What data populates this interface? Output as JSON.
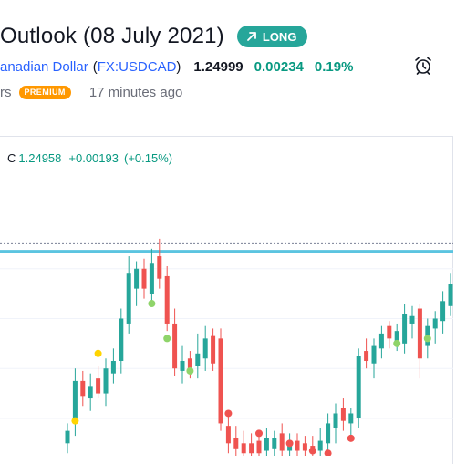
{
  "header": {
    "title": "Outlook (08 July 2021)",
    "badge_label": "LONG",
    "badge_icon": "arrow-up-right-icon"
  },
  "symbol": {
    "name": "anadian Dollar",
    "ticker": "FX:USDCAD",
    "price": "1.24999",
    "change": "0.00234",
    "change_pct": "0.19%",
    "alert_icon": "alarm-clock-icon"
  },
  "meta": {
    "author_suffix": "rs",
    "premium_label": "PREMIUM",
    "time_ago": "17 minutes ago"
  },
  "ohlc": {
    "close_label": "C",
    "close_value": "1.24958",
    "change_value": "+0.00193",
    "change_pct": "(+0.15%)"
  },
  "colors": {
    "up": "#26a69a",
    "down": "#ef5350",
    "accent_blue": "#2962ff",
    "level_line": "#5bc4e0",
    "premium": "#ff9800",
    "dot_green": "#8fd46a",
    "dot_red": "#ef5350",
    "dot_yellow": "#ffd400"
  },
  "chart_data": {
    "type": "candlestick",
    "title": "",
    "xlabel": "",
    "ylabel": "",
    "ylim": [
      1.2245,
      1.234
    ],
    "levels": [
      {
        "kind": "dashed",
        "value": 1.233
      },
      {
        "kind": "solid",
        "value": 1.2327
      }
    ],
    "candles": [
      {
        "dir": "up",
        "open": 1.225,
        "high": 1.2258,
        "low": 1.2246,
        "close": 1.2255
      },
      {
        "dir": "up",
        "open": 1.2258,
        "high": 1.228,
        "low": 1.2253,
        "close": 1.2275
      },
      {
        "dir": "down",
        "open": 1.2275,
        "high": 1.2279,
        "low": 1.2265,
        "close": 1.2269
      },
      {
        "dir": "up",
        "open": 1.2268,
        "high": 1.2278,
        "low": 1.2263,
        "close": 1.2273
      },
      {
        "dir": "down",
        "open": 1.2276,
        "high": 1.2281,
        "low": 1.2268,
        "close": 1.227
      },
      {
        "dir": "up",
        "open": 1.227,
        "high": 1.2284,
        "low": 1.2265,
        "close": 1.228
      },
      {
        "dir": "up",
        "open": 1.2278,
        "high": 1.2288,
        "low": 1.2274,
        "close": 1.2283
      },
      {
        "dir": "up",
        "open": 1.2283,
        "high": 1.2304,
        "low": 1.2278,
        "close": 1.23
      },
      {
        "dir": "up",
        "open": 1.2298,
        "high": 1.2325,
        "low": 1.2294,
        "close": 1.2318
      },
      {
        "dir": "up",
        "open": 1.2312,
        "high": 1.2323,
        "low": 1.2305,
        "close": 1.232
      },
      {
        "dir": "down",
        "open": 1.232,
        "high": 1.2324,
        "low": 1.2308,
        "close": 1.2312
      },
      {
        "dir": "up",
        "open": 1.231,
        "high": 1.2328,
        "low": 1.2305,
        "close": 1.2322
      },
      {
        "dir": "down",
        "open": 1.2325,
        "high": 1.2332,
        "low": 1.2312,
        "close": 1.2316
      },
      {
        "dir": "down",
        "open": 1.2317,
        "high": 1.2321,
        "low": 1.2295,
        "close": 1.2298
      },
      {
        "dir": "down",
        "open": 1.2298,
        "high": 1.2304,
        "low": 1.2277,
        "close": 1.228
      },
      {
        "dir": "up",
        "open": 1.2279,
        "high": 1.2289,
        "low": 1.2274,
        "close": 1.2283
      },
      {
        "dir": "down",
        "open": 1.2284,
        "high": 1.2287,
        "low": 1.2276,
        "close": 1.2278
      },
      {
        "dir": "up",
        "open": 1.2281,
        "high": 1.2294,
        "low": 1.2276,
        "close": 1.2286
      },
      {
        "dir": "up",
        "open": 1.2284,
        "high": 1.2297,
        "low": 1.2279,
        "close": 1.2292
      },
      {
        "dir": "down",
        "open": 1.2293,
        "high": 1.2296,
        "low": 1.2279,
        "close": 1.2282
      },
      {
        "dir": "down",
        "open": 1.2292,
        "high": 1.2296,
        "low": 1.2255,
        "close": 1.2258
      },
      {
        "dir": "down",
        "open": 1.2257,
        "high": 1.2262,
        "low": 1.2246,
        "close": 1.225
      },
      {
        "dir": "down",
        "open": 1.2252,
        "high": 1.2257,
        "low": 1.2245,
        "close": 1.2248
      },
      {
        "dir": "down",
        "open": 1.225,
        "high": 1.2255,
        "low": 1.2244,
        "close": 1.2246
      },
      {
        "dir": "down",
        "open": 1.225,
        "high": 1.2254,
        "low": 1.2244,
        "close": 1.2246
      },
      {
        "dir": "down",
        "open": 1.2251,
        "high": 1.2254,
        "low": 1.2244,
        "close": 1.2246
      },
      {
        "dir": "up",
        "open": 1.2247,
        "high": 1.2256,
        "low": 1.2244,
        "close": 1.2252
      },
      {
        "dir": "up",
        "open": 1.2248,
        "high": 1.2255,
        "low": 1.2244,
        "close": 1.2252
      },
      {
        "dir": "down",
        "open": 1.2254,
        "high": 1.2258,
        "low": 1.2244,
        "close": 1.2247
      },
      {
        "dir": "up",
        "open": 1.2247,
        "high": 1.2254,
        "low": 1.2244,
        "close": 1.2251
      },
      {
        "dir": "down",
        "open": 1.2251,
        "high": 1.2254,
        "low": 1.2244,
        "close": 1.2247
      },
      {
        "dir": "down",
        "open": 1.225,
        "high": 1.2253,
        "low": 1.2244,
        "close": 1.2247
      },
      {
        "dir": "down",
        "open": 1.2249,
        "high": 1.2253,
        "low": 1.2244,
        "close": 1.2246
      },
      {
        "dir": "up",
        "open": 1.2247,
        "high": 1.2256,
        "low": 1.2244,
        "close": 1.2251
      },
      {
        "dir": "up",
        "open": 1.225,
        "high": 1.2262,
        "low": 1.2246,
        "close": 1.2258
      },
      {
        "dir": "up",
        "open": 1.2256,
        "high": 1.2266,
        "low": 1.225,
        "close": 1.2262
      },
      {
        "dir": "down",
        "open": 1.2264,
        "high": 1.2268,
        "low": 1.2255,
        "close": 1.2259
      },
      {
        "dir": "up",
        "open": 1.2258,
        "high": 1.2264,
        "low": 1.2253,
        "close": 1.2262
      },
      {
        "dir": "up",
        "open": 1.226,
        "high": 1.2288,
        "low": 1.2256,
        "close": 1.2285
      },
      {
        "dir": "down",
        "open": 1.2287,
        "high": 1.2292,
        "low": 1.228,
        "close": 1.2283
      },
      {
        "dir": "up",
        "open": 1.2282,
        "high": 1.2292,
        "low": 1.2276,
        "close": 1.2289
      },
      {
        "dir": "up",
        "open": 1.2288,
        "high": 1.2297,
        "low": 1.2284,
        "close": 1.2294
      },
      {
        "dir": "down",
        "open": 1.2297,
        "high": 1.2299,
        "low": 1.2288,
        "close": 1.2292
      },
      {
        "dir": "up",
        "open": 1.2291,
        "high": 1.2298,
        "low": 1.2287,
        "close": 1.2295
      },
      {
        "dir": "up",
        "open": 1.229,
        "high": 1.2306,
        "low": 1.2286,
        "close": 1.2302
      },
      {
        "dir": "up",
        "open": 1.2298,
        "high": 1.2305,
        "low": 1.2292,
        "close": 1.2301
      },
      {
        "dir": "down",
        "open": 1.2304,
        "high": 1.2306,
        "low": 1.2276,
        "close": 1.2284
      },
      {
        "dir": "up",
        "open": 1.2289,
        "high": 1.23,
        "low": 1.2284,
        "close": 1.2297
      },
      {
        "dir": "up",
        "open": 1.2296,
        "high": 1.2303,
        "low": 1.229,
        "close": 1.23
      },
      {
        "dir": "up",
        "open": 1.2299,
        "high": 1.2311,
        "low": 1.2294,
        "close": 1.2307
      },
      {
        "dir": "up",
        "open": 1.2305,
        "high": 1.2318,
        "low": 1.2301,
        "close": 1.2314
      },
      {
        "dir": "down",
        "open": 1.2316,
        "high": 1.2319,
        "low": 1.2306,
        "close": 1.231
      },
      {
        "dir": "up",
        "open": 1.2311,
        "high": 1.2318,
        "low": 1.2305,
        "close": 1.2315
      }
    ],
    "markers": [
      {
        "color": "yellow",
        "candle": 1,
        "value": 1.2259
      },
      {
        "color": "yellow",
        "candle": 4,
        "value": 1.2286
      },
      {
        "color": "green",
        "candle": 11,
        "value": 1.2306
      },
      {
        "color": "green",
        "candle": 13,
        "value": 1.2292
      },
      {
        "color": "green",
        "candle": 16,
        "value": 1.2279
      },
      {
        "color": "red",
        "candle": 21,
        "value": 1.2262
      },
      {
        "color": "red",
        "candle": 25,
        "value": 1.2254
      },
      {
        "color": "red",
        "candle": 29,
        "value": 1.225
      },
      {
        "color": "red",
        "candle": 32,
        "value": 1.2247
      },
      {
        "color": "red",
        "candle": 34,
        "value": 1.2246
      },
      {
        "color": "red",
        "candle": 37,
        "value": 1.2252
      },
      {
        "color": "green",
        "candle": 43,
        "value": 1.229
      },
      {
        "color": "green",
        "candle": 47,
        "value": 1.2292
      },
      {
        "color": "green",
        "candle": 51,
        "value": 1.2304
      }
    ]
  }
}
